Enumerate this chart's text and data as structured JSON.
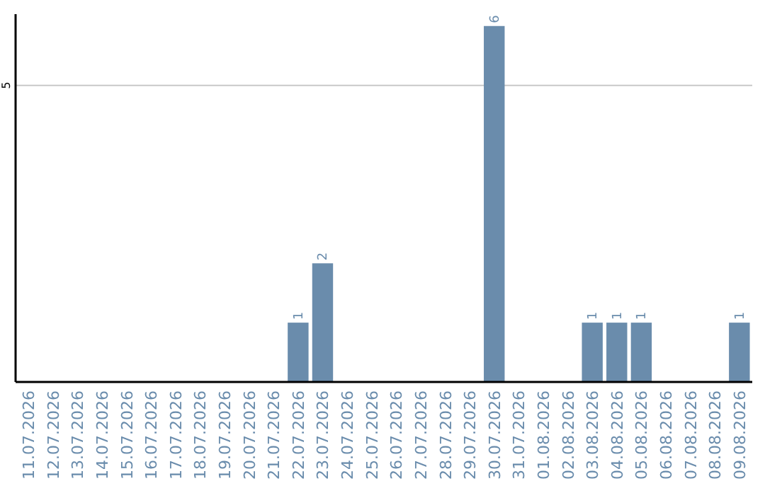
{
  "chart_data": {
    "type": "bar",
    "categories": [
      "11.07.2026",
      "12.07.2026",
      "13.07.2026",
      "14.07.2026",
      "15.07.2026",
      "16.07.2026",
      "17.07.2026",
      "18.07.2026",
      "19.07.2026",
      "20.07.2026",
      "21.07.2026",
      "22.07.2026",
      "23.07.2026",
      "24.07.2026",
      "25.07.2026",
      "26.07.2026",
      "27.07.2026",
      "28.07.2026",
      "29.07.2026",
      "30.07.2026",
      "31.07.2026",
      "01.08.2026",
      "02.08.2026",
      "03.08.2026",
      "04.08.2026",
      "05.08.2026",
      "06.08.2026",
      "07.08.2026",
      "08.08.2026",
      "09.08.2026"
    ],
    "values": [
      0,
      0,
      0,
      0,
      0,
      0,
      0,
      0,
      0,
      0,
      0,
      1,
      2,
      0,
      0,
      0,
      0,
      0,
      0,
      6,
      0,
      0,
      0,
      1,
      1,
      1,
      0,
      0,
      0,
      1
    ],
    "value_labels": [
      null,
      null,
      null,
      null,
      null,
      null,
      null,
      null,
      null,
      null,
      null,
      "1",
      "2",
      null,
      null,
      null,
      null,
      null,
      null,
      "6",
      null,
      null,
      null,
      "1",
      "1",
      "1",
      null,
      null,
      null,
      "1"
    ],
    "color": "#6a8cac",
    "ylim": [
      0,
      6.2
    ],
    "yticks": [
      5
    ],
    "grid": "y"
  }
}
